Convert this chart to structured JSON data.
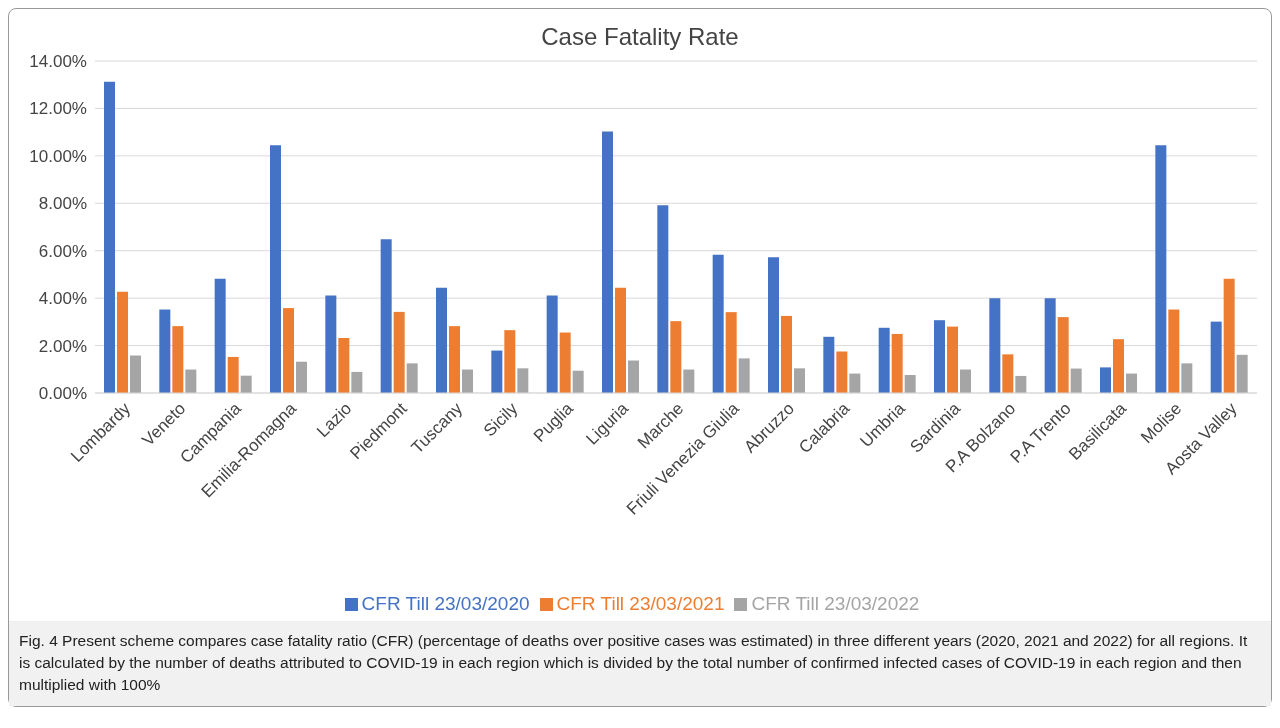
{
  "chart_data": {
    "type": "bar",
    "title": "Case Fatality Rate",
    "categories": [
      "Lombardy",
      "Veneto",
      "Campania",
      "Emilia-Romagna",
      "Lazio",
      "Piedmont",
      "Tuscany",
      "Sicily",
      "Puglia",
      "Liguria",
      "Marche",
      "Friuli Venezia Giulia",
      "Abruzzo",
      "Calabria",
      "Umbria",
      "Sardinia",
      "P.A Bolzano",
      "P.A Trento",
      "Basilicata",
      "Molise",
      "Aosta Valley"
    ],
    "series": [
      {
        "name": "CFR Till 23/03/2020",
        "color": "#4472c4",
        "values": [
          13.13,
          3.52,
          4.82,
          10.45,
          4.11,
          6.48,
          4.44,
          1.79,
          4.11,
          11.03,
          7.92,
          5.83,
          5.72,
          2.37,
          2.75,
          3.07,
          4.0,
          4.0,
          1.08,
          10.45,
          3.01
        ]
      },
      {
        "name": "CFR Till 23/03/2021",
        "color": "#ed7d31",
        "values": [
          4.27,
          2.82,
          1.52,
          3.58,
          2.32,
          3.42,
          2.82,
          2.65,
          2.55,
          4.44,
          3.03,
          3.41,
          3.25,
          1.75,
          2.49,
          2.8,
          1.63,
          3.2,
          2.27,
          3.52,
          4.82
        ]
      },
      {
        "name": "CFR Till 23/03/2022",
        "color": "#a5a5a5",
        "values": [
          1.58,
          0.99,
          0.73,
          1.32,
          0.89,
          1.25,
          0.99,
          1.04,
          0.94,
          1.37,
          0.99,
          1.46,
          1.04,
          0.82,
          0.76,
          0.99,
          0.72,
          1.03,
          0.82,
          1.25,
          1.61
        ]
      }
    ],
    "ylim": [
      0,
      14
    ],
    "yticks": [
      {
        "value": 0,
        "label": "0.00%"
      },
      {
        "value": 2,
        "label": "2.00%"
      },
      {
        "value": 4,
        "label": "4.00%"
      },
      {
        "value": 6,
        "label": "6.00%"
      },
      {
        "value": 8,
        "label": "8.00%"
      },
      {
        "value": 10,
        "label": "10.00%"
      },
      {
        "value": 12,
        "label": "12.00%"
      },
      {
        "value": 14,
        "label": "14.00%"
      }
    ],
    "grid": "y",
    "legend": "bottom",
    "annotations": [
      "Fig. 4  Present scheme compares case fatality ratio (CFR) (percentage of deaths over positive cases was estimated) in three different years (2020, 2021 and 2022) for all regions. It is calculated by the number of deaths attributed to COVID-19 in each region which is divided by the total number of confirmed infected cases of COVID-19 in each region and then multiplied with 100%"
    ]
  }
}
